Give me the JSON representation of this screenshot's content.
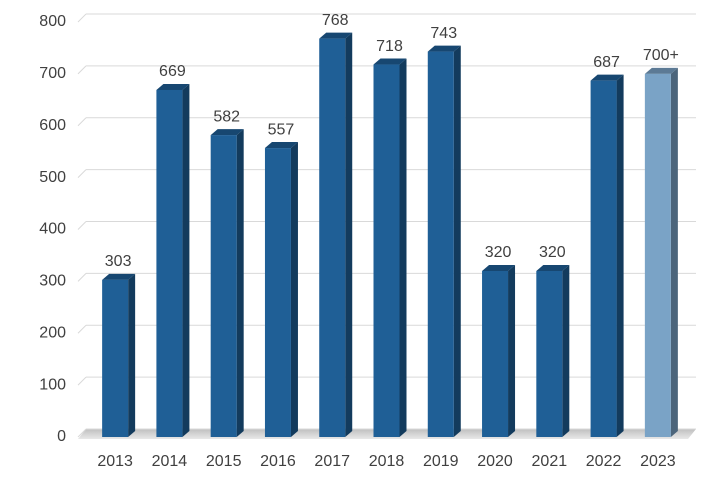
{
  "chart_data": {
    "type": "bar",
    "categories": [
      "2013",
      "2014",
      "2015",
      "2016",
      "2017",
      "2018",
      "2019",
      "2020",
      "2021",
      "2022",
      "2023"
    ],
    "values": [
      303,
      669,
      582,
      557,
      768,
      718,
      743,
      320,
      320,
      687,
      700
    ],
    "value_labels": [
      "303",
      "669",
      "582",
      "557",
      "768",
      "718",
      "743",
      "320",
      "320",
      "687",
      "700+"
    ],
    "colors": [
      "#1f5f96",
      "#1f5f96",
      "#1f5f96",
      "#1f5f96",
      "#1f5f96",
      "#1f5f96",
      "#1f5f96",
      "#1f5f96",
      "#1f5f96",
      "#1f5f96",
      "#7aa3c6"
    ],
    "ylim": [
      0,
      800
    ],
    "yticks": [
      0,
      100,
      200,
      300,
      400,
      500,
      600,
      700,
      800
    ],
    "grid": true
  }
}
